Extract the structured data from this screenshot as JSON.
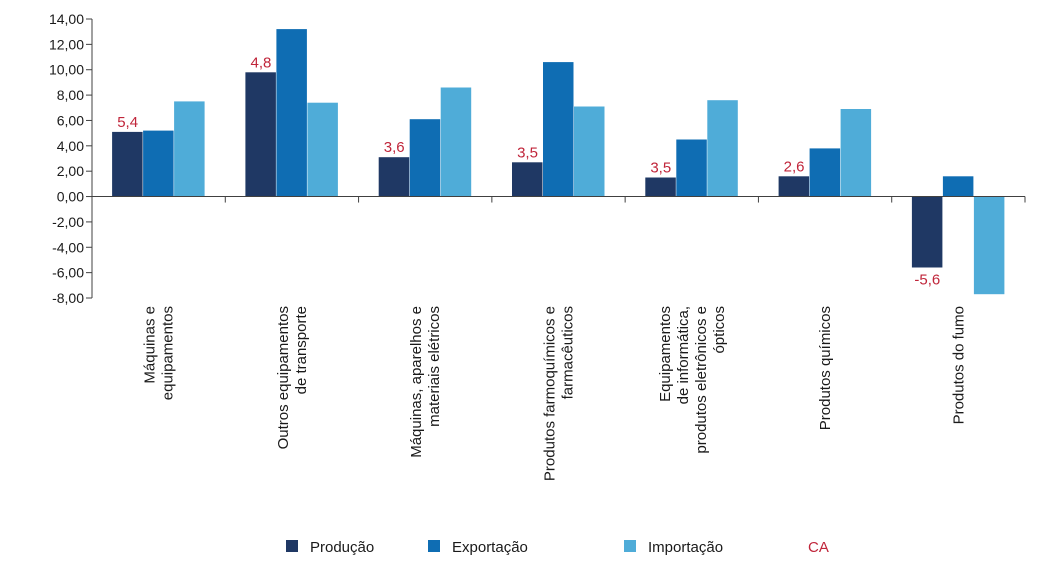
{
  "chart_data": {
    "type": "bar",
    "categories": [
      [
        "Máquinas e",
        "equipamentos"
      ],
      [
        "Outros equipamentos",
        "de transporte"
      ],
      [
        "Máquinas, aparelhos e",
        "materiais elétricos"
      ],
      [
        "Produtos farmoquímicos e",
        "farmacêuticos"
      ],
      [
        "Equipamentos",
        "de informática,",
        "produtos eletrônicos e",
        "ópticos"
      ],
      [
        "Produtos químicos"
      ],
      [
        "Produtos do fumo"
      ]
    ],
    "series": [
      {
        "name": "Produção",
        "color": "#1f3864",
        "values": [
          5.1,
          9.8,
          3.1,
          2.7,
          1.5,
          1.6,
          -5.6
        ]
      },
      {
        "name": "Exportação",
        "color": "#0f6db3",
        "values": [
          5.2,
          13.2,
          6.1,
          10.6,
          4.5,
          3.8,
          1.6
        ]
      },
      {
        "name": "Importação",
        "color": "#4facd8",
        "values": [
          7.5,
          7.4,
          8.6,
          7.1,
          7.6,
          6.9,
          -7.7
        ]
      }
    ],
    "ca": {
      "name": "CA",
      "color": "#c0253a",
      "labels": [
        "5,4",
        "4,8",
        "3,6",
        "3,5",
        "3,5",
        "2,6",
        "-5,6"
      ]
    },
    "y_ticks": [
      "14,00",
      "12,00",
      "10,00",
      "8,00",
      "6,00",
      "4,00",
      "2,00",
      "0,00",
      "-2,00",
      "-4,00",
      "-6,00",
      "-8,00"
    ],
    "ylim": [
      -8,
      14
    ],
    "xlabel": "",
    "ylabel": "",
    "grid": false,
    "legend_position": "bottom"
  }
}
